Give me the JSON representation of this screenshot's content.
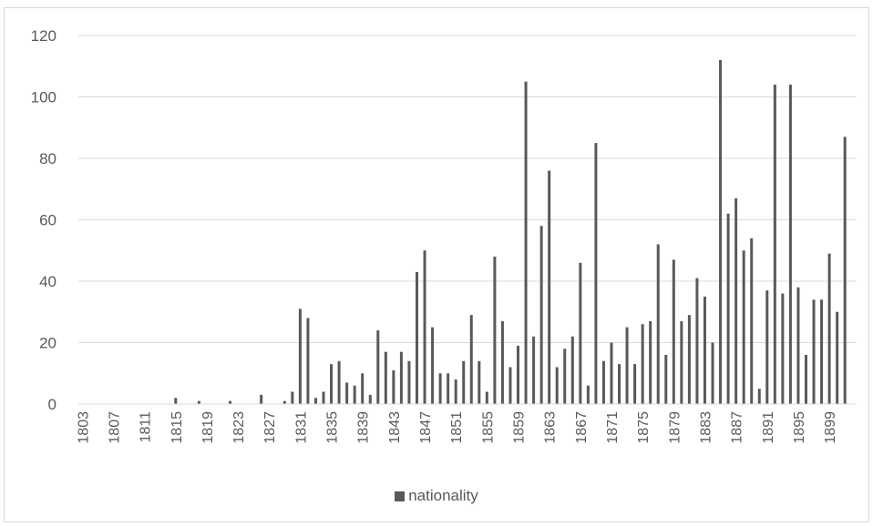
{
  "chart_data": {
    "type": "bar",
    "title": "",
    "xlabel": "",
    "ylabel": "",
    "ylim": [
      0,
      120
    ],
    "yticks": [
      0,
      20,
      40,
      60,
      80,
      100,
      120
    ],
    "grid": true,
    "legend_position": "bottom",
    "color": "#595959",
    "categories": [
      1803,
      1804,
      1805,
      1806,
      1807,
      1808,
      1809,
      1810,
      1811,
      1812,
      1813,
      1814,
      1815,
      1816,
      1817,
      1818,
      1819,
      1820,
      1821,
      1822,
      1823,
      1824,
      1825,
      1826,
      1827,
      1828,
      1829,
      1830,
      1831,
      1832,
      1833,
      1834,
      1835,
      1836,
      1837,
      1838,
      1839,
      1840,
      1841,
      1842,
      1843,
      1844,
      1845,
      1846,
      1847,
      1848,
      1849,
      1850,
      1851,
      1852,
      1853,
      1854,
      1855,
      1856,
      1857,
      1858,
      1859,
      1860,
      1861,
      1862,
      1863,
      1864,
      1865,
      1866,
      1867,
      1868,
      1869,
      1870,
      1871,
      1872,
      1873,
      1874,
      1875,
      1876,
      1877,
      1878,
      1879,
      1880,
      1881,
      1882,
      1883,
      1884,
      1885,
      1886,
      1887,
      1888,
      1889,
      1890,
      1891,
      1892,
      1893,
      1894,
      1895,
      1896,
      1897,
      1898,
      1899,
      1900,
      1901,
      1902
    ],
    "xtick_labels": [
      "1803",
      "1807",
      "1811",
      "1815",
      "1819",
      "1823",
      "1827",
      "1831",
      "1835",
      "1839",
      "1843",
      "1847",
      "1851",
      "1855",
      "1859",
      "1863",
      "1867",
      "1871",
      "1875",
      "1879",
      "1883",
      "1887",
      "1891",
      "1895",
      "1899"
    ],
    "series": [
      {
        "name": "nationality",
        "values": [
          0,
          0,
          0,
          0,
          0,
          0,
          0,
          0,
          0,
          0,
          0,
          0,
          2,
          0,
          0,
          1,
          0,
          0,
          0,
          1,
          0,
          0,
          0,
          3,
          0,
          0,
          1,
          4,
          31,
          28,
          2,
          4,
          13,
          14,
          7,
          6,
          10,
          3,
          24,
          17,
          11,
          17,
          14,
          43,
          50,
          25,
          10,
          10,
          8,
          14,
          29,
          14,
          4,
          48,
          27,
          12,
          19,
          105,
          22,
          58,
          76,
          12,
          18,
          22,
          46,
          6,
          85,
          14,
          20,
          13,
          25,
          13,
          26,
          27,
          52,
          16,
          47,
          27,
          29,
          41,
          35,
          20,
          112,
          62,
          67,
          50,
          54,
          5,
          37,
          104,
          36,
          104,
          38,
          16,
          34,
          34,
          49,
          30,
          87,
          0
        ]
      }
    ]
  }
}
